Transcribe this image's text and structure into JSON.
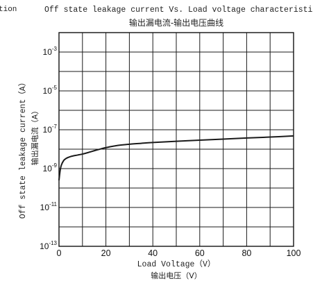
{
  "page": {
    "cut_text": "tion"
  },
  "chart_data": {
    "type": "line",
    "title": "Off state leakage current Vs. Load voltage characteristics",
    "subtitle": "输出漏电流-输出电压曲线",
    "xlabel": "Load Voltage（V）",
    "xlabel_secondary": "输出电压（V）",
    "ylabel": "Off state leakage current（A）",
    "ylabel_secondary": "输出漏电流（A）",
    "xlim": [
      0,
      100
    ],
    "ylim": [
      1e-13,
      0.01
    ],
    "y_scale": "log",
    "grid": true,
    "x_ticks": [
      0,
      20,
      40,
      60,
      80,
      100
    ],
    "x_tick_labels": [
      "0",
      "20",
      "40",
      "60",
      "80",
      "100"
    ],
    "x_grid_step": 10,
    "y_ticks": [
      1e-13,
      1e-11,
      1e-09,
      1e-07,
      1e-05,
      0.001
    ],
    "y_tick_labels": [
      {
        "base": "10",
        "exp": "-13"
      },
      {
        "base": "10",
        "exp": "-11"
      },
      {
        "base": "10",
        "exp": "-9"
      },
      {
        "base": "10",
        "exp": "-7"
      },
      {
        "base": "10",
        "exp": "-5"
      },
      {
        "base": "10",
        "exp": "-3"
      }
    ],
    "y_grid_exponents": [
      -13,
      -12,
      -11,
      -10,
      -9,
      -8,
      -7,
      -6,
      -5,
      -4,
      -3,
      -2
    ],
    "line_color": "#1a1a1a",
    "series": [
      {
        "x": [
          0,
          0.5,
          1,
          2,
          3,
          4,
          5,
          6,
          8,
          10,
          12,
          15,
          18,
          20,
          25,
          30,
          35,
          40,
          50,
          60,
          70,
          80,
          90,
          100
        ],
        "y": [
          2.5e-10,
          8e-10,
          1.5e-09,
          2.6e-09,
          3.3e-09,
          3.8e-09,
          4.2e-09,
          4.5e-09,
          5e-09,
          5.6e-09,
          6.5e-09,
          8.3e-09,
          1.05e-08,
          1.2e-08,
          1.55e-08,
          1.8e-08,
          2e-08,
          2.2e-08,
          2.55e-08,
          2.9e-08,
          3.3e-08,
          3.75e-08,
          4.2e-08,
          4.8e-08
        ]
      }
    ]
  }
}
